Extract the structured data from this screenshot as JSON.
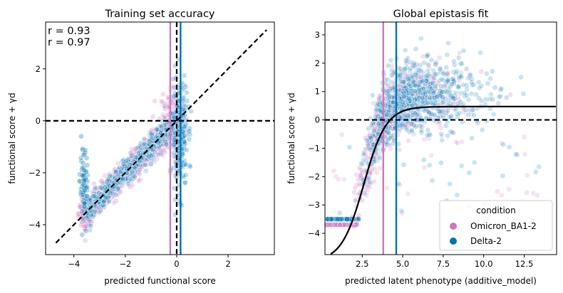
{
  "chart_data": [
    {
      "type": "scatter",
      "title": "Training set accuracy",
      "xlabel": "predicted functional score",
      "ylabel": "functional score + γd",
      "xlim": [
        -5.1,
        3.8
      ],
      "ylim": [
        -5.15,
        3.8
      ],
      "xticks": [
        -4,
        -2,
        0,
        2
      ],
      "yticks": [
        -4,
        -2,
        0,
        2
      ],
      "xtick_labels": [
        "−4",
        "−2",
        "0",
        "2"
      ],
      "ytick_labels": [
        "−4",
        "−2",
        "0",
        "2"
      ],
      "grid": false,
      "annotations": [
        {
          "text": "r = 0.93",
          "color": "#0173b2"
        },
        {
          "text": "r = 0.97",
          "color": "#de73b0"
        }
      ],
      "reference_lines": {
        "identity": {
          "from": [
            -4.7,
            -4.7
          ],
          "to": [
            3.5,
            3.5
          ],
          "style": "dashed",
          "color": "#000000"
        },
        "horizontal_zero": {
          "y": 0,
          "style": "dashed",
          "color": "#000000"
        },
        "vertical_zero": {
          "x": 0,
          "style": "dashed",
          "color": "#000000"
        },
        "condition_lines": [
          {
            "x": -0.25,
            "color": "#cc78bc"
          },
          {
            "x": 0.15,
            "color": "#0173b2"
          }
        ]
      },
      "series": [
        {
          "color": "#cc78bc",
          "point_count": 900,
          "description_points": "clustered along identity from (-3.7,-3.8) to (0,0), plus spread near x=0"
        },
        {
          "color": "#0173b2",
          "point_count": 900,
          "description_points": "clustered along identity plus vertical band at x≈0.1 from -3.5 to 2.5 and at x≈-3.6"
        }
      ]
    },
    {
      "type": "scatter",
      "title": "Global epistasis fit",
      "xlabel": "predicted latent phenotype (additive_model)",
      "ylabel": "functional score + γd",
      "xlim": [
        0.2,
        14.5
      ],
      "ylim": [
        -4.75,
        3.45
      ],
      "xticks": [
        2.5,
        5.0,
        7.5,
        10.0,
        12.5
      ],
      "yticks": [
        -4,
        -3,
        -2,
        -1,
        0,
        1,
        2,
        3
      ],
      "xtick_labels": [
        "2.5",
        "5.0",
        "7.5",
        "10.0",
        "12.5"
      ],
      "ytick_labels": [
        "−4",
        "−3",
        "−2",
        "−1",
        "0",
        "1",
        "2",
        "3"
      ],
      "grid": false,
      "reference_lines": {
        "horizontal_zero": {
          "y": 0,
          "style": "dashed",
          "color": "#000000"
        },
        "condition_lines": [
          {
            "x": 3.8,
            "color": "#cc78bc"
          },
          {
            "x": 4.6,
            "color": "#0173b2"
          }
        ]
      },
      "fit_curve": {
        "type": "sigmoid",
        "lower": -5.0,
        "upper": 0.47,
        "midpoint": 2.6,
        "slope": 1.45,
        "color": "#000000"
      },
      "legend": {
        "title": "condition",
        "placement": "lower right",
        "entries": [
          {
            "label": "Omicron_BA1-2",
            "color": "#cc78bc"
          },
          {
            "label": "Delta-2",
            "color": "#0173b2"
          }
        ]
      }
    }
  ]
}
